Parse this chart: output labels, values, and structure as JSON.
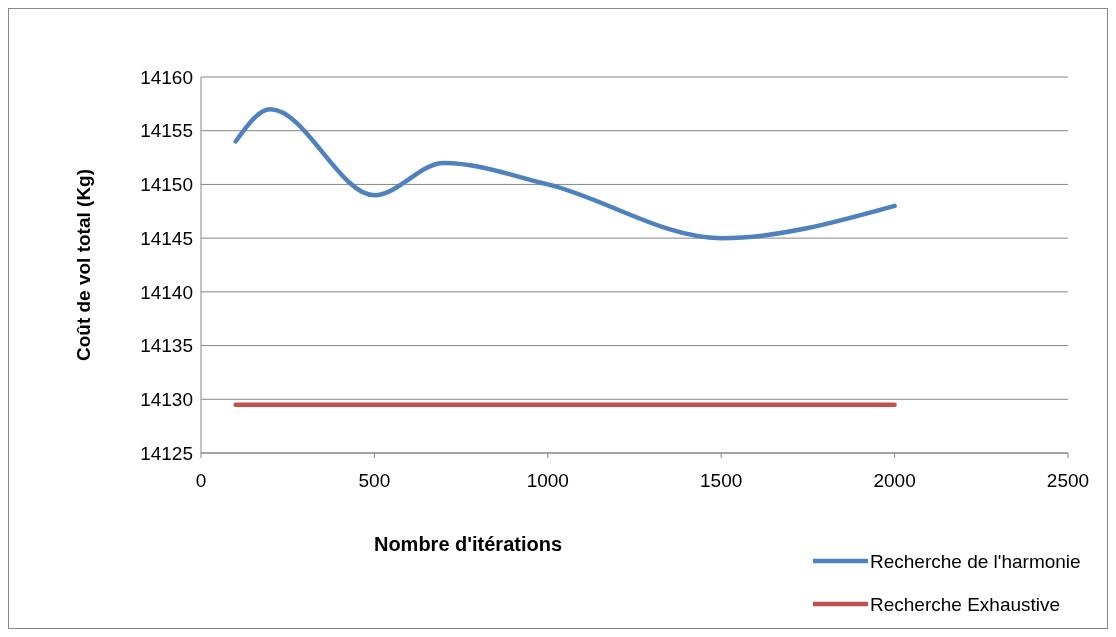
{
  "chart_data": {
    "type": "line",
    "xlabel": "Nombre d'itérations",
    "ylabel": "Coût de vol total (Kg)",
    "xlim": [
      0,
      2500
    ],
    "xticks": [
      0,
      500,
      1000,
      1500,
      2000,
      2500
    ],
    "ylim": [
      14125,
      14160
    ],
    "yticks": [
      14125,
      14130,
      14135,
      14140,
      14145,
      14150,
      14155,
      14160
    ],
    "grid": "y",
    "legend": "bottom right",
    "marker": "none",
    "line_style": "solid",
    "series": [
      {
        "name": "Recherche de l'harmonie",
        "color": "#4f81bd",
        "x": [
          100,
          200,
          500,
          700,
          1000,
          1500,
          2000
        ],
        "values": [
          14154,
          14157,
          14149,
          14152,
          14150,
          14145,
          14148
        ]
      },
      {
        "name": "Recherche Exhaustive",
        "color": "#c0504d",
        "x": [
          100,
          2000
        ],
        "values": [
          14129.5,
          14129.5
        ]
      }
    ]
  }
}
